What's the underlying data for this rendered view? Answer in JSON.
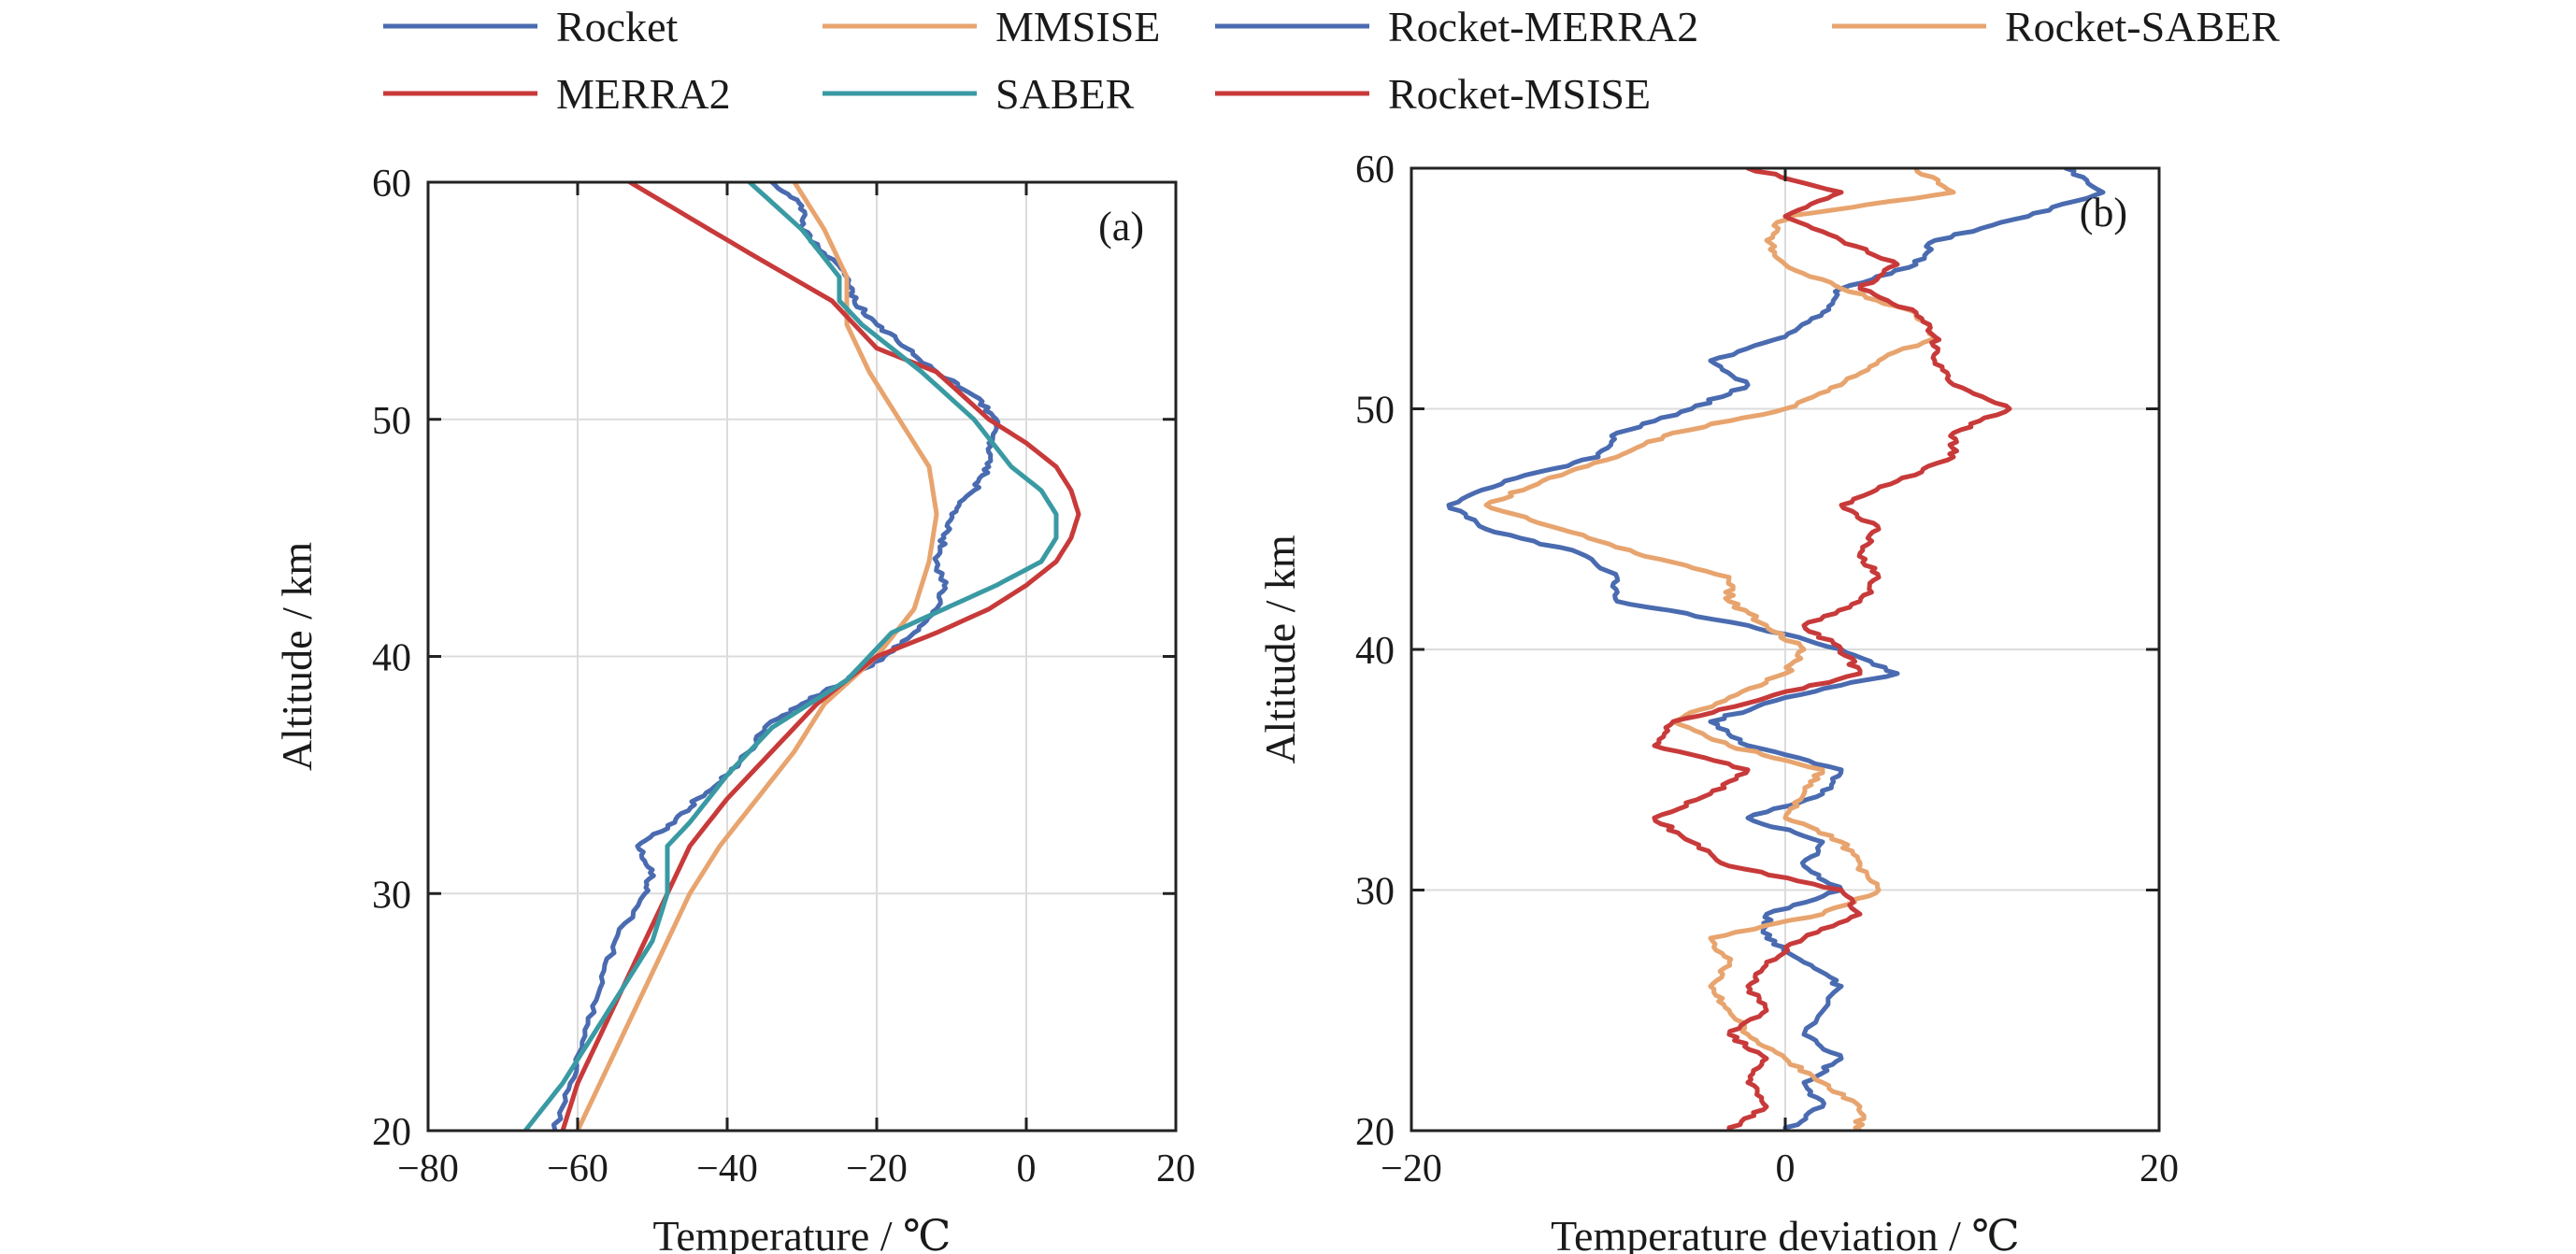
{
  "legend": {
    "items": [
      {
        "label": "Rocket",
        "color": "#4a6bb0"
      },
      {
        "label": "MMSISE",
        "color": "#e8a46e"
      },
      {
        "label": "Rocket-MERRA2",
        "color": "#4a6bb0"
      },
      {
        "label": "Rocket-SABER",
        "color": "#e8a46e"
      },
      {
        "label": "MERRA2",
        "color": "#c83a3a"
      },
      {
        "label": "SABER",
        "color": "#3a9aa3"
      },
      {
        "label": "Rocket-MSISE",
        "color": "#c83a3a"
      }
    ]
  },
  "chart_data": [
    {
      "type": "line",
      "panel_label": "(a)",
      "xlabel": "Temperature / ℃",
      "ylabel": "Altitude / km",
      "xlim": [
        -80,
        20
      ],
      "ylim": [
        20,
        60
      ],
      "xticks": [
        -80,
        -60,
        -40,
        -20,
        0,
        20
      ],
      "yticks": [
        20,
        30,
        40,
        50,
        60
      ],
      "grid": true,
      "series": [
        {
          "name": "Rocket",
          "color": "#4a6bb0",
          "noise": 0.9,
          "points": [
            [
              -63,
              20
            ],
            [
              -61,
              22
            ],
            [
              -59,
              24
            ],
            [
              -57,
              26
            ],
            [
              -55,
              28
            ],
            [
              -51,
              30
            ],
            [
              -50,
              31
            ],
            [
              -52,
              32
            ],
            [
              -47,
              33
            ],
            [
              -44,
              34
            ],
            [
              -40,
              35
            ],
            [
              -37,
              36
            ],
            [
              -35,
              37
            ],
            [
              -30,
              38
            ],
            [
              -24,
              39
            ],
            [
              -19,
              40
            ],
            [
              -15,
              41
            ],
            [
              -12,
              42
            ],
            [
              -11,
              43
            ],
            [
              -12,
              44
            ],
            [
              -11,
              45
            ],
            [
              -10,
              46
            ],
            [
              -7,
              47
            ],
            [
              -5,
              48
            ],
            [
              -5,
              49
            ],
            [
              -4,
              50
            ],
            [
              -7,
              51
            ],
            [
              -12,
              52
            ],
            [
              -16,
              53
            ],
            [
              -20,
              54
            ],
            [
              -23,
              55
            ],
            [
              -24,
              56
            ],
            [
              -27,
              57
            ],
            [
              -30,
              58
            ],
            [
              -30,
              59
            ],
            [
              -34,
              60
            ]
          ]
        },
        {
          "name": "MMSISE",
          "color": "#e8a46e",
          "points": [
            [
              -60,
              20
            ],
            [
              -57,
              22
            ],
            [
              -54,
              24
            ],
            [
              -51,
              26
            ],
            [
              -48,
              28
            ],
            [
              -45,
              30
            ],
            [
              -41,
              32
            ],
            [
              -36,
              34
            ],
            [
              -31,
              36
            ],
            [
              -27,
              38
            ],
            [
              -20,
              40
            ],
            [
              -15,
              42
            ],
            [
              -13,
              44
            ],
            [
              -12,
              46
            ],
            [
              -13,
              48
            ],
            [
              -17,
              50
            ],
            [
              -21,
              52
            ],
            [
              -24,
              54
            ],
            [
              -24,
              56
            ],
            [
              -27,
              58
            ],
            [
              -31,
              60
            ]
          ]
        },
        {
          "name": "MERRA2",
          "color": "#c83a3a",
          "points": [
            [
              -62,
              20
            ],
            [
              -60,
              22
            ],
            [
              -57,
              24
            ],
            [
              -54,
              26
            ],
            [
              -51,
              28
            ],
            [
              -48,
              30
            ],
            [
              -45,
              32
            ],
            [
              -40,
              34
            ],
            [
              -34,
              36
            ],
            [
              -28,
              38
            ],
            [
              -20,
              40
            ],
            [
              -12,
              41
            ],
            [
              -5,
              42
            ],
            [
              0,
              43
            ],
            [
              4,
              44
            ],
            [
              6,
              45
            ],
            [
              7,
              46
            ],
            [
              6,
              47
            ],
            [
              4,
              48
            ],
            [
              0,
              49
            ],
            [
              -5,
              50
            ],
            [
              -12,
              52
            ],
            [
              -20,
              53
            ],
            [
              -26,
              55
            ],
            [
              -37,
              57
            ],
            [
              -53,
              60
            ]
          ]
        },
        {
          "name": "SABER",
          "color": "#3a9aa3",
          "points": [
            [
              -67,
              20
            ],
            [
              -62,
              22
            ],
            [
              -58,
              24
            ],
            [
              -54,
              26
            ],
            [
              -50,
              28
            ],
            [
              -48,
              30
            ],
            [
              -48,
              32
            ],
            [
              -45,
              33
            ],
            [
              -40,
              35
            ],
            [
              -34,
              37
            ],
            [
              -24,
              39
            ],
            [
              -18,
              41
            ],
            [
              -11,
              42
            ],
            [
              -4,
              43
            ],
            [
              2,
              44
            ],
            [
              4,
              45
            ],
            [
              4,
              46
            ],
            [
              2,
              47
            ],
            [
              -2,
              48
            ],
            [
              -7,
              50
            ],
            [
              -14,
              52
            ],
            [
              -22,
              54
            ],
            [
              -25,
              55
            ],
            [
              -25,
              56
            ],
            [
              -30,
              58
            ],
            [
              -37,
              60
            ]
          ]
        }
      ]
    },
    {
      "type": "line",
      "panel_label": "(b)",
      "xlabel": "Temperature deviation / ℃",
      "ylabel": "Altitude / km",
      "xlim": [
        -20,
        20
      ],
      "ylim": [
        20,
        60
      ],
      "xticks": [
        -20,
        0,
        20
      ],
      "yticks": [
        20,
        30,
        40,
        50,
        60
      ],
      "grid": true,
      "series": [
        {
          "name": "Rocket-MERRA2",
          "color": "#4a6bb0",
          "noise": 0.5,
          "points": [
            [
              0,
              20
            ],
            [
              2,
              21
            ],
            [
              1,
              22
            ],
            [
              3,
              23
            ],
            [
              1,
              24
            ],
            [
              3,
              26
            ],
            [
              1,
              27
            ],
            [
              -1,
              28
            ],
            [
              -1,
              29
            ],
            [
              3,
              30
            ],
            [
              1,
              31
            ],
            [
              2,
              32
            ],
            [
              -2,
              33
            ],
            [
              2,
              34
            ],
            [
              3,
              35
            ],
            [
              -2,
              36
            ],
            [
              -4,
              37
            ],
            [
              0,
              38
            ],
            [
              6,
              39
            ],
            [
              3,
              40
            ],
            [
              -2,
              41
            ],
            [
              -9,
              42
            ],
            [
              -9,
              43
            ],
            [
              -11,
              44
            ],
            [
              -16,
              45
            ],
            [
              -18,
              46
            ],
            [
              -15,
              47
            ],
            [
              -10,
              48
            ],
            [
              -9,
              49
            ],
            [
              -5,
              50
            ],
            [
              -2,
              51
            ],
            [
              -4,
              52
            ],
            [
              0,
              53
            ],
            [
              2,
              54
            ],
            [
              3,
              55
            ],
            [
              7,
              56
            ],
            [
              8,
              57
            ],
            [
              13,
              58
            ],
            [
              17,
              59
            ],
            [
              15,
              60
            ]
          ]
        },
        {
          "name": "Rocket-SABER",
          "color": "#e8a46e",
          "noise": 0.5,
          "points": [
            [
              4,
              20
            ],
            [
              4,
              21
            ],
            [
              2,
              22
            ],
            [
              0,
              23
            ],
            [
              -2,
              24
            ],
            [
              -3,
              25
            ],
            [
              -4,
              26
            ],
            [
              -3,
              27
            ],
            [
              -4,
              28
            ],
            [
              2,
              29
            ],
            [
              5,
              30
            ],
            [
              4,
              31
            ],
            [
              3,
              32
            ],
            [
              0,
              33
            ],
            [
              1,
              34
            ],
            [
              2,
              35
            ],
            [
              -3,
              36
            ],
            [
              -6,
              37
            ],
            [
              -3,
              38
            ],
            [
              0,
              39
            ],
            [
              1,
              40
            ],
            [
              -1,
              41
            ],
            [
              -3,
              42
            ],
            [
              -3,
              43
            ],
            [
              -8,
              44
            ],
            [
              -12,
              45
            ],
            [
              -16,
              46
            ],
            [
              -13,
              47
            ],
            [
              -9,
              48
            ],
            [
              -6,
              49
            ],
            [
              0,
              50
            ],
            [
              3,
              51
            ],
            [
              5,
              52
            ],
            [
              8,
              53
            ],
            [
              7,
              54
            ],
            [
              3,
              55
            ],
            [
              0,
              56
            ],
            [
              -1,
              57
            ],
            [
              0,
              58
            ],
            [
              9,
              59
            ],
            [
              7,
              60
            ]
          ]
        },
        {
          "name": "Rocket-MSISE",
          "color": "#c83a3a",
          "noise": 0.5,
          "points": [
            [
              -3,
              20
            ],
            [
              -1,
              21
            ],
            [
              -2,
              22
            ],
            [
              -1,
              23
            ],
            [
              -3,
              24
            ],
            [
              -1,
              25
            ],
            [
              -2,
              26
            ],
            [
              -1,
              27
            ],
            [
              1,
              28
            ],
            [
              4,
              29
            ],
            [
              3,
              30
            ],
            [
              -3,
              31
            ],
            [
              -5,
              32
            ],
            [
              -7,
              33
            ],
            [
              -4,
              34
            ],
            [
              -2,
              35
            ],
            [
              -7,
              36
            ],
            [
              -6,
              37
            ],
            [
              -1,
              38
            ],
            [
              4,
              39
            ],
            [
              3,
              40
            ],
            [
              1,
              41
            ],
            [
              4,
              42
            ],
            [
              5,
              43
            ],
            [
              4,
              44
            ],
            [
              5,
              45
            ],
            [
              3,
              46
            ],
            [
              6,
              47
            ],
            [
              9,
              48
            ],
            [
              9,
              49
            ],
            [
              12,
              50
            ],
            [
              9,
              51
            ],
            [
              8,
              52
            ],
            [
              8,
              53
            ],
            [
              7,
              54
            ],
            [
              4,
              55
            ],
            [
              6,
              56
            ],
            [
              3,
              57
            ],
            [
              0,
              58
            ],
            [
              3,
              59
            ],
            [
              -2,
              60
            ]
          ]
        }
      ]
    }
  ]
}
